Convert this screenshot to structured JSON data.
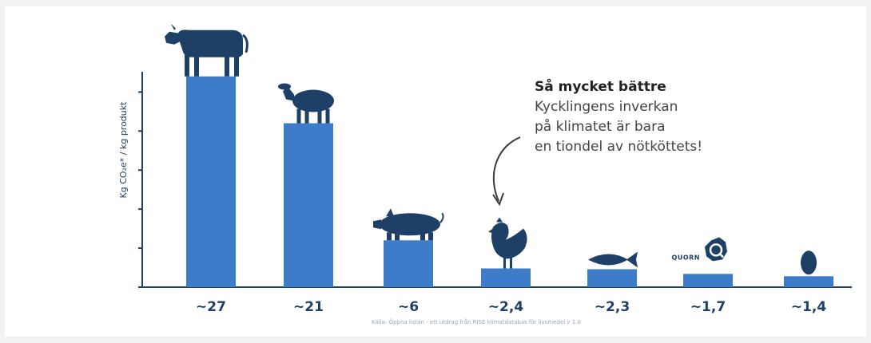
{
  "chart_data": {
    "type": "bar",
    "categories": [
      "~27",
      "~21",
      "~6",
      "~2,4",
      "~2,3",
      "~1,7",
      "~1,4"
    ],
    "values": [
      27,
      21,
      6,
      2.4,
      2.3,
      1.7,
      1.4
    ],
    "icons": [
      "cow-icon",
      "sheep-icon",
      "pig-icon",
      "chicken-icon",
      "fish-icon",
      "quorn-icon",
      "egg-icon"
    ],
    "ylabel": "Kg CO₂e* / kg produkt",
    "ylim": [
      0,
      28
    ],
    "bar_color": "#3d7cc9",
    "icon_color": "#1e3f66",
    "axis_color": "#1e3f66",
    "grid": false,
    "legend": "none",
    "annotation": {
      "title": "Så mycket bättre",
      "lines": [
        "Kycklingens inverkan",
        "på klimatet är bara",
        "en tiondel av nötköttets!"
      ]
    },
    "quorn_label": "QUORN",
    "source": "Källa: Öppna listan - ett utdrag från RISE klimatdatabas för livsmedel v 1.0"
  }
}
